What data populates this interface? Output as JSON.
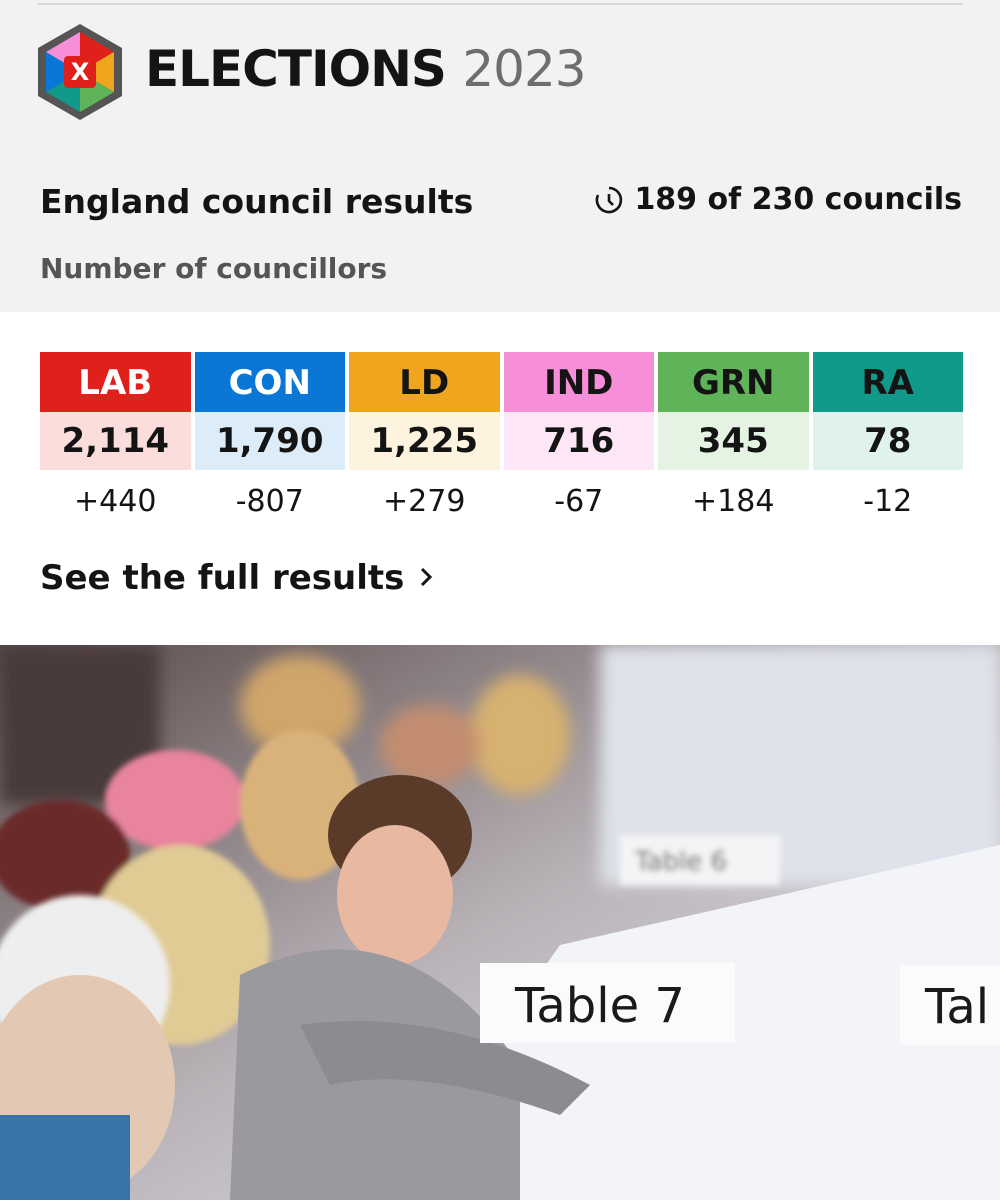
{
  "header": {
    "brand": "ELECTIONS",
    "year": "2023",
    "logo_letter": "X"
  },
  "results": {
    "title": "England council results",
    "progress": "189 of 230 councils",
    "subtitle": "Number of councillors",
    "parties": [
      {
        "name": "LAB",
        "seats": "2,114",
        "change": "+440",
        "color": "#e0201b",
        "light": "#fbdedb",
        "text_color": "#ffffff"
      },
      {
        "name": "CON",
        "seats": "1,790",
        "change": "-807",
        "color": "#0a77d6",
        "light": "#dcecf8",
        "text_color": "#ffffff"
      },
      {
        "name": "LD",
        "seats": "1,225",
        "change": "+279",
        "color": "#f0a51e",
        "light": "#fdf3de",
        "text_color": "#141414"
      },
      {
        "name": "IND",
        "seats": "716",
        "change": "-67",
        "color": "#f78fd8",
        "light": "#fde7f6",
        "text_color": "#141414"
      },
      {
        "name": "GRN",
        "seats": "345",
        "change": "+184",
        "color": "#5fb45a",
        "light": "#e5f3e3",
        "text_color": "#141414"
      },
      {
        "name": "RA",
        "seats": "78",
        "change": "-12",
        "color": "#11998a",
        "light": "#dff2ee",
        "text_color": "#141414"
      }
    ],
    "link": "See the full results"
  },
  "photo": {
    "signs": [
      "Table 7",
      "Table 6",
      "Tal"
    ]
  }
}
